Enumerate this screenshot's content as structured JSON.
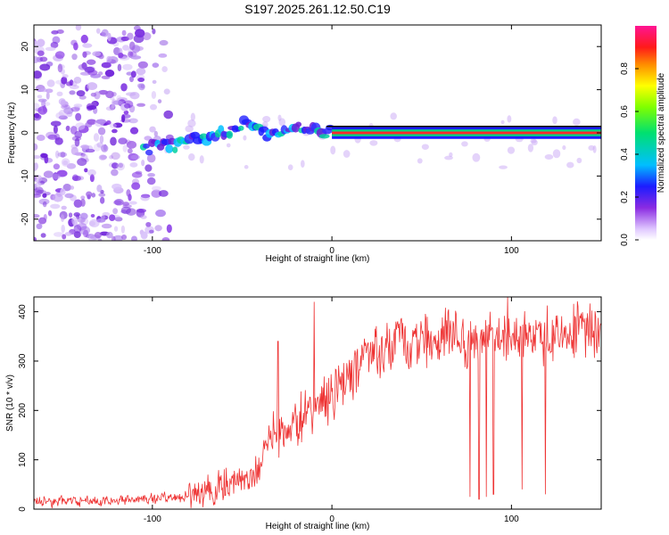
{
  "chart_data": [
    {
      "type": "heatmap",
      "title": "S197.2025.261.12.50.C19",
      "xlabel": "Height of straight line (km)",
      "ylabel": "Frequency (Hz)",
      "xlim": [
        -166,
        150
      ],
      "ylim": [
        -25,
        25
      ],
      "xticks": [
        "-100",
        "0",
        "100"
      ],
      "xtick_values": [
        -100,
        0,
        100
      ],
      "yticks": [
        "-20",
        "-10",
        "0",
        "10",
        "20"
      ],
      "ytick_values": [
        -20,
        -10,
        0,
        10,
        20
      ],
      "colorbar": {
        "label": "Normalized spectral amplitude",
        "range": [
          0,
          1
        ],
        "ticks": [
          "0.0",
          "0.2",
          "0.4",
          "0.6",
          "0.8"
        ],
        "tick_values": [
          0.0,
          0.2,
          0.4,
          0.6,
          0.8
        ]
      },
      "features": {
        "noise_region_x": [
          -166,
          -95
        ],
        "ridge": [
          {
            "x": -105,
            "f": -3.5
          },
          {
            "x": -90,
            "f": -3
          },
          {
            "x": -75,
            "f": -1.5
          },
          {
            "x": -60,
            "f": 0
          },
          {
            "x": -50,
            "f": 1.5
          },
          {
            "x": -45,
            "f": 3
          },
          {
            "x": -40,
            "f": 0
          },
          {
            "x": -30,
            "f": -1
          },
          {
            "x": -20,
            "f": 2
          },
          {
            "x": -10,
            "f": 0.5
          },
          {
            "x": 0,
            "f": 0
          },
          {
            "x": 150,
            "f": 0
          }
        ]
      }
    },
    {
      "type": "line",
      "xlabel": "Height of straight line (km)",
      "ylabel": "SNR (10 * v/v)",
      "xlim": [
        -166,
        150
      ],
      "ylim": [
        0,
        430
      ],
      "xticks": [
        "-100",
        "0",
        "100"
      ],
      "xtick_values": [
        -100,
        0,
        100
      ],
      "yticks": [
        "0",
        "100",
        "200",
        "300",
        "400"
      ],
      "ytick_values": [
        0,
        100,
        200,
        300,
        400
      ],
      "series": [
        {
          "name": "SNR",
          "color": "#ee3333",
          "trend": {
            "x": [
              -166,
              -120,
              -80,
              -60,
              -40,
              -35,
              -20,
              0,
              20,
              50,
              100,
              150
            ],
            "y": [
              15,
              18,
              25,
              45,
              80,
              150,
              170,
              240,
              320,
              340,
              350,
              360
            ]
          },
          "spikes": [
            {
              "x": -30,
              "y": 340
            },
            {
              "x": -10,
              "y": 420
            },
            {
              "x": 88,
              "y": 400
            },
            {
              "x": 98,
              "y": 430
            }
          ],
          "dips": [
            {
              "x": 77,
              "y": 25
            },
            {
              "x": 82,
              "y": 20
            },
            {
              "x": 86,
              "y": 25
            },
            {
              "x": 90,
              "y": 30
            },
            {
              "x": 106,
              "y": 40
            },
            {
              "x": 119,
              "y": 30
            }
          ]
        }
      ]
    }
  ]
}
